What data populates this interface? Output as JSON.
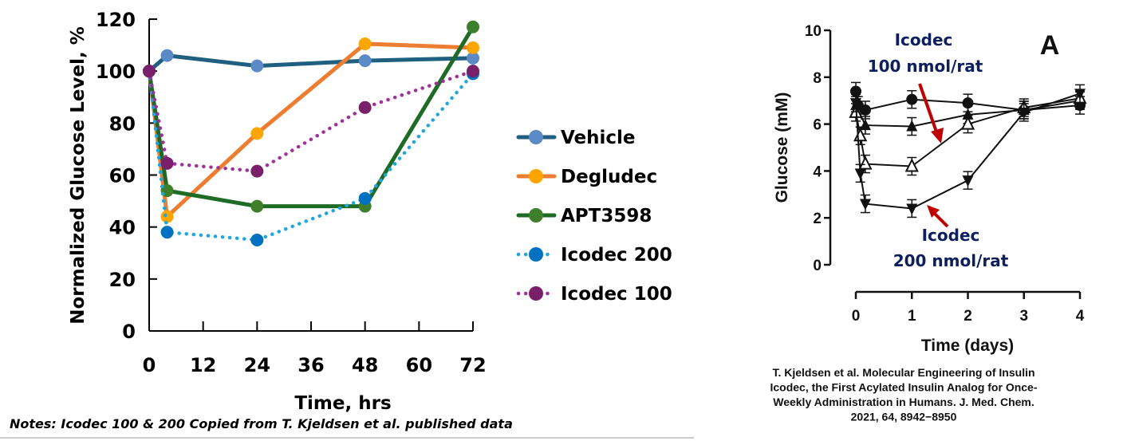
{
  "chart_data": [
    {
      "type": "line",
      "xlabel": "Time, hrs",
      "ylabel": "Normalized Glucose Level, %",
      "xlim": [
        0,
        72
      ],
      "ylim": [
        0,
        120
      ],
      "xticks": [
        0,
        12,
        24,
        36,
        48,
        60,
        72
      ],
      "yticks": [
        0,
        20,
        40,
        60,
        80,
        100,
        120
      ],
      "grid": false,
      "legend_position": "right",
      "x": [
        0,
        4,
        24,
        48,
        72
      ],
      "series": [
        {
          "name": "Vehicle",
          "values": [
            100,
            106,
            102,
            104,
            105
          ],
          "line_color": "#1f5f7f",
          "marker_color": "#5b8ac6",
          "style": "solid"
        },
        {
          "name": "Degludec",
          "values": [
            100,
            44,
            76,
            110.5,
            109
          ],
          "line_color": "#ed7d31",
          "marker_color": "#ffa500",
          "style": "solid"
        },
        {
          "name": "APT3598",
          "values": [
            100,
            54,
            48,
            48,
            117
          ],
          "line_color": "#1e6b26",
          "marker_color": "#3d7f2a",
          "style": "solid"
        },
        {
          "name": "Icodec 200",
          "values": [
            100,
            38,
            35,
            51,
            99
          ],
          "line_color": "#1ea6e0",
          "marker_color": "#0070c0",
          "style": "dotted"
        },
        {
          "name": "Icodec 100",
          "values": [
            100,
            64.5,
            61.5,
            86,
            100
          ],
          "line_color": "#a0309a",
          "marker_color": "#7a1f6a",
          "style": "dotted"
        }
      ],
      "notes": "Notes: Icodec 100 & 200 Copied from T. Kjeldsen et al. published data"
    },
    {
      "type": "line",
      "panel_label": "A",
      "xlabel": "Time (days)",
      "ylabel": "Glucose (mM)",
      "xlim": [
        0,
        4
      ],
      "ylim": [
        0,
        10
      ],
      "xticks": [
        0,
        1,
        2,
        3,
        4
      ],
      "yticks": [
        0,
        2,
        4,
        6,
        8,
        10
      ],
      "grid": false,
      "series": [
        {
          "marker": "circle-filled",
          "x": [
            0,
            0.04,
            0.17,
            1,
            2,
            3,
            4
          ],
          "values": [
            7.4,
            6.8,
            6.6,
            7.05,
            6.9,
            6.6,
            6.8
          ]
        },
        {
          "marker": "triangle-up-filled",
          "x": [
            0,
            0.17,
            1,
            2,
            3,
            4
          ],
          "values": [
            6.8,
            5.95,
            5.9,
            6.4,
            6.6,
            7.0
          ]
        },
        {
          "marker": "triangle-up-open",
          "x": [
            0,
            0.08,
            0.17,
            1,
            2,
            3,
            4
          ],
          "values": [
            6.5,
            5.5,
            4.3,
            4.2,
            6.0,
            6.7,
            7.1
          ]
        },
        {
          "marker": "triangle-down-filled",
          "x": [
            0,
            0.08,
            0.17,
            1,
            2,
            3,
            4
          ],
          "values": [
            6.9,
            3.9,
            2.6,
            2.4,
            3.6,
            6.5,
            7.3
          ]
        }
      ],
      "annotations": [
        {
          "line1": "Icodec",
          "line2": "100 nmol/rat"
        },
        {
          "line1": "Icodec",
          "line2": "200 nmol/rat"
        }
      ],
      "annotation_color": "#0d1f5c",
      "arrow_color": "#c00000",
      "citation": [
        "T. Kjeldsen et al. Molecular Engineering of Insulin",
        "Icodec, the First Acylated Insulin Analog for Once-",
        "Weekly Administration  in Humans. J. Med. Chem.",
        "2021, 64, 8942−8950"
      ]
    }
  ]
}
